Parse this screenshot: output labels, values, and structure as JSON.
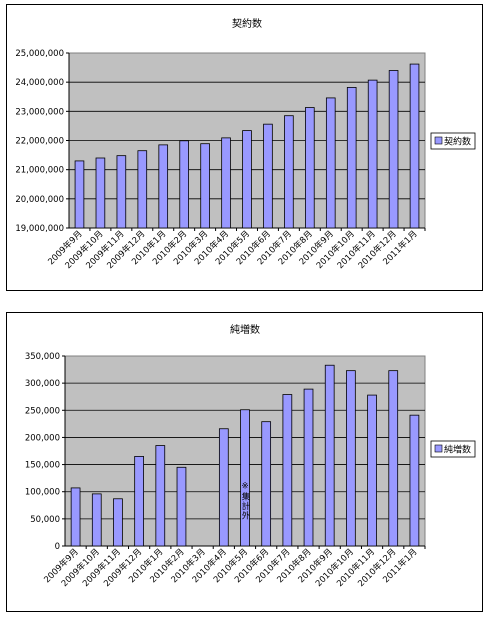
{
  "chart_data": [
    {
      "type": "bar",
      "title": "契約数",
      "xlabel": "",
      "ylabel": "",
      "categories": [
        "2009年9月",
        "2009年10月",
        "2009年11月",
        "2009年12月",
        "2010年1月",
        "2010年2月",
        "2010年3月",
        "2010年4月",
        "2010年5月",
        "2010年6月",
        "2010年7月",
        "2010年8月",
        "2010年9月",
        "2010年10月",
        "2010年11月",
        "2010年12月",
        "2011年1月"
      ],
      "series": [
        {
          "name": "契約数",
          "values": [
            21300000,
            21400000,
            21480000,
            21650000,
            21850000,
            21990000,
            21890000,
            22090000,
            22340000,
            22560000,
            22850000,
            23130000,
            23460000,
            23820000,
            24070000,
            24400000,
            24620000
          ]
        }
      ],
      "ylim": [
        19000000,
        25000000
      ],
      "yticks": [
        "19,000,000",
        "20,000,000",
        "21,000,000",
        "22,000,000",
        "23,000,000",
        "24,000,000",
        "25,000,000"
      ],
      "grid": true,
      "legend": "right",
      "colors": {
        "bar": "#9999ff",
        "plot_bg": "#c0c0c0",
        "bar_stroke": "#000000"
      }
    },
    {
      "type": "bar",
      "title": "純増数",
      "xlabel": "",
      "ylabel": "",
      "categories": [
        "2009年9月",
        "2009年10月",
        "2009年11月",
        "2009年12月",
        "2010年1月",
        "2010年2月",
        "2010年3月",
        "2010年4月",
        "2010年5月",
        "2010年6月",
        "2010年7月",
        "2010年8月",
        "2010年9月",
        "2010年10月",
        "2010年11月",
        "2010年12月",
        "2011年1月"
      ],
      "series": [
        {
          "name": "純増数",
          "values": [
            107000,
            96000,
            87000,
            165000,
            185000,
            145000,
            null,
            216000,
            251000,
            229000,
            279000,
            289000,
            333000,
            323000,
            278000,
            323000,
            241000
          ]
        }
      ],
      "ylim": [
        0,
        350000
      ],
      "yticks": [
        "0",
        "50,000",
        "100,000",
        "150,000",
        "200,000",
        "250,000",
        "300,000",
        "350,000"
      ],
      "grid": true,
      "legend": "right",
      "annotation": "※集計外",
      "colors": {
        "bar": "#9999ff",
        "plot_bg": "#c0c0c0",
        "bar_stroke": "#000000"
      }
    }
  ]
}
